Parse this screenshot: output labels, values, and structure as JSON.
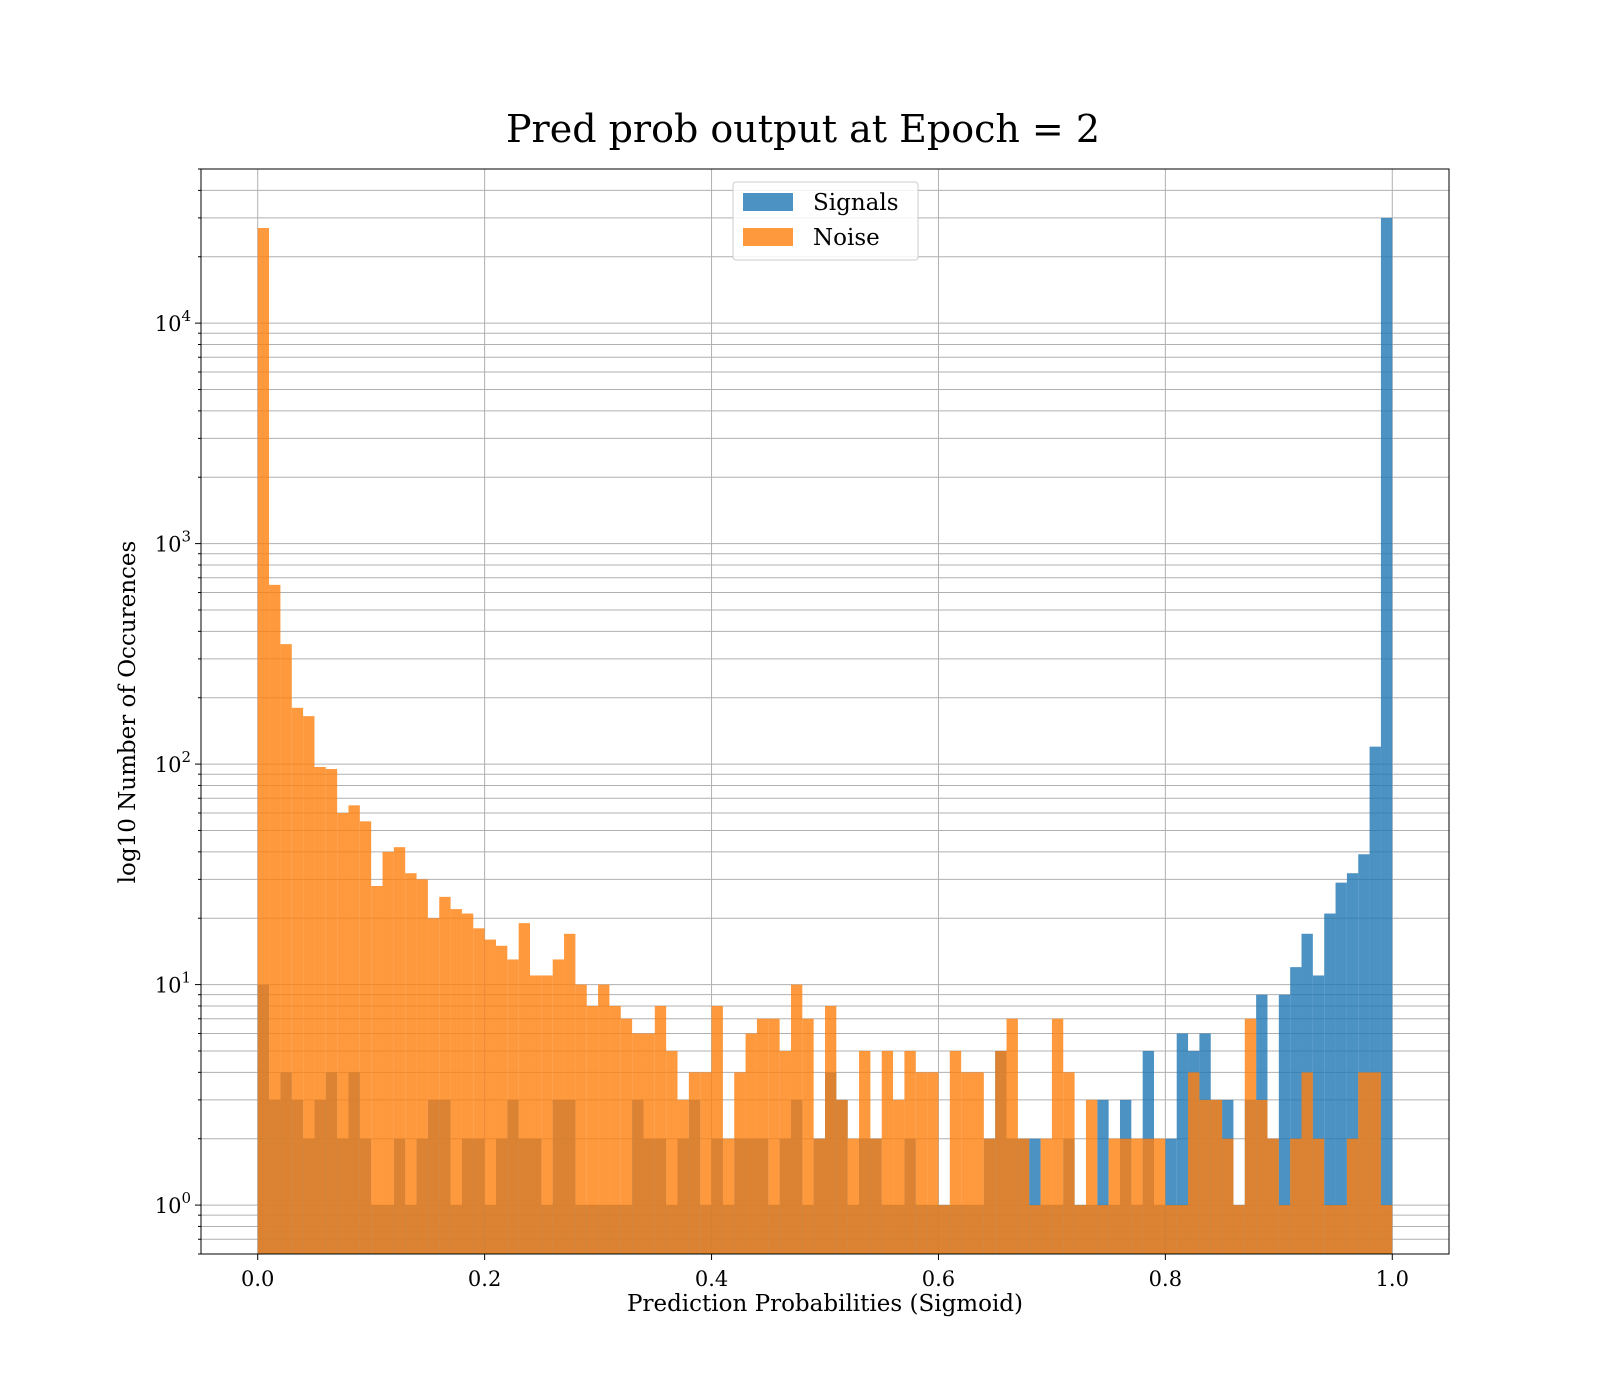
{
  "chart_data": {
    "type": "bar",
    "subtype": "overlaid-histogram",
    "title": "Pred prob output at Epoch = 2",
    "xlabel": "Prediction Probabilities (Sigmoid)",
    "ylabel": "log10 Number of Occurences",
    "xlim": [
      -0.05,
      1.05
    ],
    "ylim": [
      0.6,
      50000
    ],
    "yscale": "log",
    "grid": "on (major and minor)",
    "legend_position": "upper center",
    "x_tick_labels": [
      "0.0",
      "0.2",
      "0.4",
      "0.6",
      "0.8",
      "1.0"
    ],
    "x_ticks": [
      0.0,
      0.2,
      0.4,
      0.6,
      0.8,
      1.0
    ],
    "y_ticks": [
      {
        "value": 1,
        "base": "10",
        "exp": "0"
      },
      {
        "value": 10,
        "base": "10",
        "exp": "1"
      },
      {
        "value": 100,
        "base": "10",
        "exp": "2"
      },
      {
        "value": 1000,
        "base": "10",
        "exp": "3"
      },
      {
        "value": 10000,
        "base": "10",
        "exp": "4"
      }
    ],
    "bin_edges": {
      "start": 0.0,
      "end": 1.0,
      "count": 100
    },
    "series": [
      {
        "name": "Signals",
        "color": "#1f77b4",
        "opacity": 0.8,
        "values": [
          10,
          3,
          4,
          3,
          2,
          3,
          4,
          2,
          4,
          2,
          1,
          1,
          2,
          1,
          2,
          3,
          3,
          1,
          2,
          2,
          1,
          2,
          3,
          2,
          2,
          1,
          3,
          3,
          1,
          1,
          1,
          1,
          1,
          3,
          2,
          2,
          1,
          2,
          3,
          1,
          2,
          1,
          2,
          2,
          2,
          1,
          2,
          3,
          1,
          2,
          4,
          3,
          1,
          2,
          2,
          1,
          1,
          2,
          1,
          1,
          1,
          1,
          1,
          1,
          2,
          5,
          2,
          2,
          2,
          1,
          1,
          2,
          1,
          1,
          3,
          1,
          3,
          1,
          5,
          1,
          2,
          6,
          5,
          6,
          3,
          3,
          1,
          3,
          9,
          2,
          9,
          12,
          17,
          11,
          21,
          29,
          32,
          39,
          120,
          30000
        ]
      },
      {
        "name": "Noise",
        "color": "#ff7f0e",
        "opacity": 0.8,
        "values": [
          27000,
          650,
          350,
          180,
          165,
          97,
          95,
          60,
          65,
          55,
          28,
          40,
          42,
          32,
          30,
          20,
          25,
          22,
          21,
          18,
          16,
          15,
          13,
          19,
          11,
          11,
          13,
          17,
          10,
          8,
          10,
          8,
          7,
          6,
          6,
          8,
          5,
          3,
          4,
          4,
          8,
          2,
          4,
          6,
          7,
          7,
          5,
          10,
          7,
          2,
          8,
          3,
          2,
          5,
          2,
          5,
          3,
          5,
          4,
          4,
          1,
          5,
          4,
          4,
          2,
          5,
          7,
          2,
          1,
          2,
          7,
          4,
          1,
          3,
          1,
          2,
          2,
          2,
          2,
          2,
          1,
          1,
          4,
          3,
          3,
          2,
          1,
          7,
          3,
          2,
          1,
          2,
          4,
          2,
          1,
          1,
          2,
          4,
          4,
          1
        ]
      }
    ]
  }
}
